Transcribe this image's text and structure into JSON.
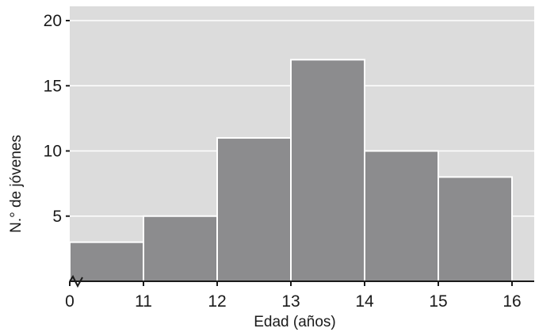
{
  "chart_data": {
    "type": "bar",
    "subtype": "histogram",
    "bins": [
      {
        "start": 10,
        "end": 11,
        "value": 3
      },
      {
        "start": 11,
        "end": 12,
        "value": 5
      },
      {
        "start": 12,
        "end": 13,
        "value": 11
      },
      {
        "start": 13,
        "end": 14,
        "value": 17
      },
      {
        "start": 14,
        "end": 15,
        "value": 10
      },
      {
        "start": 15,
        "end": 16,
        "value": 8
      }
    ],
    "xlabel": "Edad (años)",
    "ylabel": "N.° de jóvenes",
    "xlim": [
      10,
      16
    ],
    "ylim": [
      0,
      20
    ],
    "x_tick_labels": [
      "0",
      "11",
      "12",
      "13",
      "14",
      "15",
      "16"
    ],
    "y_ticks": [
      5,
      10,
      15,
      20
    ],
    "y_tick_labels": [
      "5",
      "10",
      "15",
      "20"
    ],
    "x_axis_break": true,
    "grid": "horizontal",
    "colors": {
      "plot_background": "#dcdcdc",
      "bar_fill": "#8c8c8e",
      "bar_edge": "#ffffff",
      "grid": "#ffffff",
      "axis": "#1a1a1a"
    }
  }
}
